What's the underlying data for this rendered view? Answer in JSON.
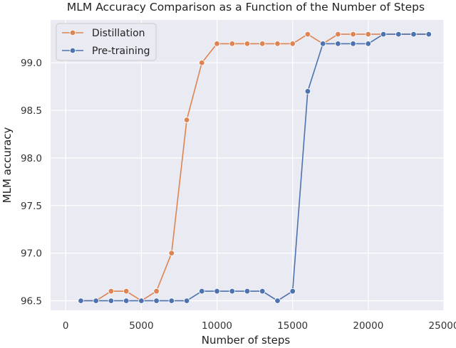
{
  "chart_data": {
    "type": "line",
    "title": "MLM Accuracy Comparison as a Function of the Number of Steps",
    "xlabel": "Number of steps",
    "ylabel": "MLM accuracy",
    "xlim": [
      -1000,
      25000
    ],
    "ylim": [
      96.4,
      99.45
    ],
    "x_ticks": [
      "0",
      "5000",
      "10000",
      "15000",
      "20000",
      "25000"
    ],
    "y_ticks": [
      "96.5",
      "97.0",
      "97.5",
      "98.0",
      "98.5",
      "99.0"
    ],
    "x_tick_values": [
      0,
      5000,
      10000,
      15000,
      20000,
      25000
    ],
    "y_tick_values": [
      96.5,
      97.0,
      97.5,
      98.0,
      98.5,
      99.0
    ],
    "grid": true,
    "background": "#eaeaf2",
    "legend_position": "top-left",
    "series": [
      {
        "name": "Distillation",
        "color": "#dd8452",
        "x": [
          1000,
          2000,
          3000,
          4000,
          5000,
          6000,
          7000,
          8000,
          9000,
          10000,
          11000,
          12000,
          13000,
          14000,
          15000,
          16000,
          17000,
          18000,
          19000,
          20000,
          21000,
          22000,
          23000,
          24000
        ],
        "y": [
          96.5,
          96.5,
          96.6,
          96.6,
          96.5,
          96.6,
          97.0,
          98.4,
          99.0,
          99.2,
          99.2,
          99.2,
          99.2,
          99.2,
          99.2,
          99.3,
          99.2,
          99.3,
          99.3,
          99.3,
          99.3,
          99.3,
          99.3,
          99.3
        ]
      },
      {
        "name": "Pre-training",
        "color": "#4c72b0",
        "x": [
          1000,
          2000,
          3000,
          4000,
          5000,
          6000,
          7000,
          8000,
          9000,
          10000,
          11000,
          12000,
          13000,
          14000,
          15000,
          16000,
          17000,
          18000,
          19000,
          20000,
          21000,
          22000,
          23000,
          24000
        ],
        "y": [
          96.5,
          96.5,
          96.5,
          96.5,
          96.5,
          96.5,
          96.5,
          96.5,
          96.6,
          96.6,
          96.6,
          96.6,
          96.6,
          96.5,
          96.6,
          98.7,
          99.2,
          99.2,
          99.2,
          99.2,
          99.3,
          99.3,
          99.3,
          99.3
        ]
      }
    ]
  }
}
